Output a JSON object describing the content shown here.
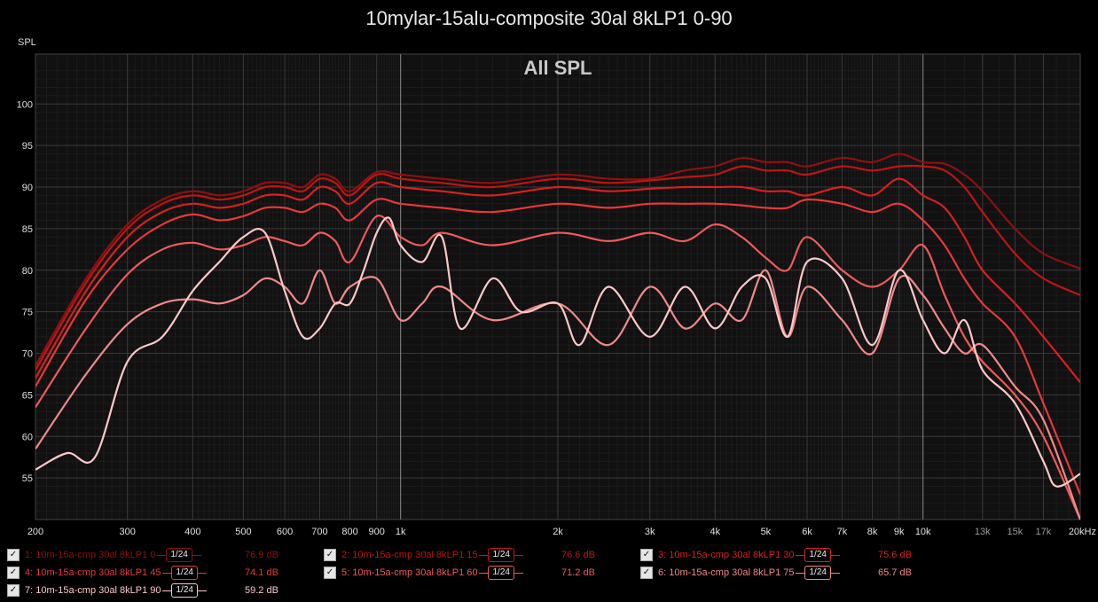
{
  "title": "10mylar-15alu-composite 30al 8kLP1 0-90",
  "chart_data": {
    "type": "line",
    "title": "10mylar-15alu-composite 30al 8kLP1 0-90",
    "subtitle": "All SPL",
    "ylabel": "SPL",
    "xlabel": "",
    "x_scale": "log",
    "xlim": [
      200,
      20000
    ],
    "ylim": [
      50,
      106
    ],
    "grid": true,
    "x_ticks": [
      "200",
      "300",
      "400",
      "500",
      "600",
      "700",
      "800",
      "900",
      "1k",
      "2k",
      "3k",
      "4k",
      "5k",
      "6k",
      "7k",
      "8k",
      "9k",
      "10k",
      "13k",
      "15k",
      "17k",
      "20kHz"
    ],
    "y_ticks": [
      "55",
      "60",
      "65",
      "70",
      "75",
      "80",
      "85",
      "90",
      "95",
      "100"
    ],
    "series": [
      {
        "name": "1: 10m-15a-cmp 30al 8kLP1 0",
        "color": "#8e1010",
        "smoothing": "1/24",
        "level": "76.9 dB",
        "x": [
          200,
          250,
          300,
          350,
          400,
          450,
          500,
          550,
          600,
          650,
          700,
          750,
          800,
          900,
          1000,
          1200,
          1500,
          2000,
          2500,
          3000,
          3500,
          4000,
          4500,
          5000,
          5500,
          6000,
          7000,
          8000,
          9000,
          10000,
          11000,
          12000,
          13000,
          15000,
          17000,
          20000
        ],
        "y": [
          68.5,
          79,
          85.5,
          88.5,
          89.5,
          89,
          89.5,
          90.5,
          90.5,
          90,
          91.5,
          91,
          89.5,
          91.8,
          91.5,
          91,
          90.5,
          91.5,
          91,
          91,
          92,
          92.5,
          93.5,
          93,
          93,
          92.5,
          93.5,
          93,
          94,
          93,
          92.8,
          91.5,
          89.5,
          85,
          82,
          80.2
        ]
      },
      {
        "name": "2: 10m-15a-cmp 30al 8kLP1 15",
        "color": "#c01414",
        "smoothing": "1/24",
        "level": "76.6 dB",
        "x": [
          200,
          250,
          300,
          350,
          400,
          450,
          500,
          550,
          600,
          650,
          700,
          750,
          800,
          900,
          1000,
          1200,
          1500,
          2000,
          2500,
          3000,
          3500,
          4000,
          4500,
          5000,
          5500,
          6000,
          7000,
          8000,
          9000,
          10000,
          11000,
          12000,
          13000,
          15000,
          17000,
          20000
        ],
        "y": [
          68,
          78.5,
          85,
          88,
          89,
          88.5,
          89,
          90,
          90,
          89.5,
          91,
          90.5,
          89,
          91.5,
          91,
          90.5,
          90,
          91,
          90.5,
          90.8,
          91.2,
          91.5,
          92.5,
          92,
          92,
          91.5,
          92.5,
          92,
          92.5,
          92.5,
          92,
          90,
          87,
          82,
          79,
          77
        ]
      },
      {
        "name": "3: 10m-15a-cmp 30al 8kLP1 30",
        "color": "#d82020",
        "smoothing": "1/24",
        "level": "75.6 dB",
        "x": [
          200,
          250,
          300,
          350,
          400,
          450,
          500,
          550,
          600,
          650,
          700,
          750,
          800,
          900,
          1000,
          1200,
          1500,
          2000,
          2500,
          3000,
          3500,
          4000,
          4500,
          5000,
          5500,
          6000,
          7000,
          8000,
          9000,
          10000,
          11000,
          12000,
          13000,
          15000,
          17000,
          20000
        ],
        "y": [
          67,
          77.5,
          84,
          87,
          88,
          87.5,
          88,
          89,
          89,
          88.5,
          90,
          89.5,
          88,
          90.5,
          90,
          89.5,
          89,
          90,
          89.5,
          89.8,
          90,
          90,
          90,
          89.5,
          89.5,
          89,
          90,
          89,
          91,
          89,
          87.5,
          84,
          80,
          76,
          72,
          66.5
        ]
      },
      {
        "name": "4: 10m-15a-cmp 30al 8kLP1 45",
        "color": "#e83838",
        "smoothing": "1/24",
        "level": "74.1 dB",
        "x": [
          200,
          250,
          300,
          350,
          400,
          450,
          500,
          550,
          600,
          650,
          700,
          750,
          800,
          900,
          1000,
          1200,
          1500,
          2000,
          2500,
          3000,
          3500,
          4000,
          4500,
          5000,
          5500,
          6000,
          7000,
          8000,
          9000,
          10000,
          11000,
          12000,
          13000,
          15000,
          17000,
          20000
        ],
        "y": [
          66,
          76.5,
          82.5,
          85.5,
          86.7,
          86,
          86.5,
          87.5,
          87.5,
          87,
          88,
          87.5,
          86,
          88.5,
          88,
          87.5,
          87,
          88,
          87.5,
          88,
          88,
          88,
          87.8,
          87.5,
          87.5,
          88.5,
          88,
          87,
          88,
          86,
          83,
          79,
          76,
          72,
          64,
          53
        ]
      },
      {
        "name": "5: 10m-15a-cmp 30al 8kLP1 60",
        "color": "#f05a5a",
        "smoothing": "1/24",
        "level": "71.2 dB",
        "x": [
          200,
          250,
          300,
          350,
          400,
          450,
          500,
          550,
          600,
          650,
          700,
          750,
          800,
          900,
          1000,
          1100,
          1200,
          1500,
          2000,
          2500,
          3000,
          3500,
          4000,
          4500,
          5000,
          5500,
          6000,
          7000,
          8000,
          9000,
          10000,
          11000,
          12000,
          13000,
          15000,
          17000,
          20000
        ],
        "y": [
          63.5,
          73,
          79.5,
          82.5,
          83.3,
          82.5,
          83,
          84,
          83.5,
          83,
          84.5,
          83.5,
          81,
          86.5,
          84,
          83,
          84.5,
          83,
          84.5,
          83.5,
          84.5,
          83.5,
          85.5,
          84,
          81.5,
          80,
          84,
          80,
          78,
          80,
          83,
          77,
          72,
          69,
          65,
          60,
          50
        ]
      },
      {
        "name": "6: 10m-15a-cmp 30al 8kLP1 75",
        "color": "#f28888",
        "smoothing": "1/24",
        "level": "65.7 dB",
        "x": [
          200,
          250,
          300,
          350,
          400,
          450,
          500,
          550,
          600,
          650,
          700,
          750,
          800,
          900,
          1000,
          1100,
          1200,
          1500,
          2000,
          2500,
          3000,
          3500,
          4000,
          4500,
          5000,
          5500,
          6000,
          7000,
          8000,
          9000,
          10000,
          11000,
          12000,
          13000,
          15000,
          17000,
          20000
        ],
        "y": [
          58.5,
          67.5,
          73.5,
          76,
          76.5,
          76,
          77,
          79,
          78,
          76,
          80,
          76,
          78,
          79,
          74,
          76,
          78,
          74,
          76,
          71,
          78,
          73,
          76,
          74,
          80,
          72,
          78,
          74,
          70,
          79,
          77,
          73,
          70,
          71,
          66,
          62,
          50
        ]
      },
      {
        "name": "7: 10m-15a-cmp 30al 8kLP1 90",
        "color": "#ffc8c8",
        "smoothing": "1/24",
        "level": "59.2 dB",
        "x": [
          200,
          230,
          260,
          300,
          350,
          400,
          450,
          500,
          550,
          600,
          650,
          700,
          750,
          800,
          850,
          900,
          950,
          1000,
          1100,
          1200,
          1300,
          1500,
          1700,
          2000,
          2200,
          2500,
          3000,
          3500,
          4000,
          4500,
          5000,
          5500,
          6000,
          7000,
          8000,
          9000,
          10000,
          11000,
          12000,
          13000,
          15000,
          17000,
          18000,
          20000
        ],
        "y": [
          56,
          58,
          57.5,
          69,
          72,
          77.5,
          81,
          84,
          84.5,
          77.5,
          72,
          73,
          76,
          76,
          80,
          84.5,
          86.3,
          83,
          81,
          84,
          73,
          79,
          75,
          76,
          71,
          78,
          72,
          78,
          73,
          78,
          79,
          72,
          81,
          79,
          71,
          80,
          74,
          70,
          74,
          68,
          64,
          57,
          54,
          55.5
        ]
      }
    ]
  }
}
